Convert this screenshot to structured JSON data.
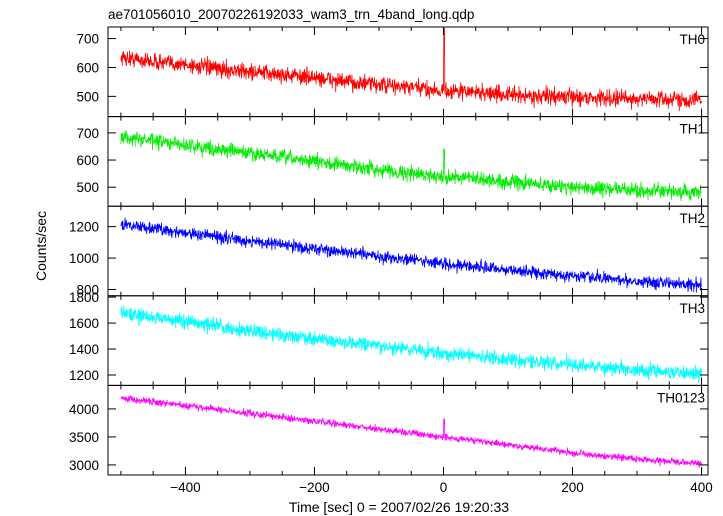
{
  "chart_data": {
    "type": "line",
    "title": "ae701056010_20070226192033_wam3_trn_4band_long.qdp",
    "xlabel": "Time [sec] 0 = 2007/02/26 19:20:33",
    "ylabel": "Counts/sec",
    "xlim": [
      -520,
      410
    ],
    "x_ticks": [
      -400,
      -200,
      0,
      200,
      400
    ],
    "x_tick_labels": [
      "−400",
      "−200",
      "0",
      "200",
      "400"
    ],
    "grid": false,
    "panels": [
      {
        "name": "TH0",
        "color": "#ff0000",
        "ylim": [
          430,
          740
        ],
        "ticks": [
          500,
          600,
          700
        ],
        "x": [
          -500,
          -450,
          -400,
          -350,
          -300,
          -250,
          -200,
          -150,
          -100,
          -50,
          0,
          50,
          100,
          150,
          200,
          250,
          300,
          350,
          400
        ],
        "y": [
          635,
          620,
          610,
          595,
          585,
          575,
          565,
          550,
          540,
          530,
          520,
          515,
          505,
          500,
          498,
          495,
          492,
          490,
          488
        ],
        "noise": 28,
        "spike": {
          "x": 1,
          "y": 735
        }
      },
      {
        "name": "TH1",
        "color": "#00ee00",
        "ylim": [
          430,
          760
        ],
        "ticks": [
          500,
          600,
          700
        ],
        "x": [
          -500,
          -450,
          -400,
          -350,
          -300,
          -250,
          -200,
          -150,
          -100,
          -50,
          0,
          50,
          100,
          150,
          200,
          250,
          300,
          350,
          400
        ],
        "y": [
          685,
          670,
          655,
          640,
          625,
          610,
          595,
          580,
          565,
          550,
          540,
          530,
          520,
          510,
          500,
          495,
          488,
          482,
          478
        ],
        "noise": 26,
        "spike": {
          "x": 1,
          "y": 640
        }
      },
      {
        "name": "TH2",
        "color": "#0000ff",
        "ylim": [
          760,
          1330
        ],
        "ticks": [
          800,
          1000,
          1200
        ],
        "x": [
          -500,
          -450,
          -400,
          -350,
          -300,
          -250,
          -200,
          -150,
          -100,
          -50,
          0,
          50,
          100,
          150,
          200,
          250,
          300,
          350,
          400
        ],
        "y": [
          1215,
          1190,
          1160,
          1135,
          1110,
          1085,
          1060,
          1035,
          1010,
          990,
          965,
          945,
          925,
          905,
          885,
          870,
          855,
          842,
          830
        ],
        "noise": 38,
        "spike": null
      },
      {
        "name": "TH3",
        "color": "#00ffff",
        "ylim": [
          1120,
          1810
        ],
        "ticks": [
          1200,
          1400,
          1600,
          1800
        ],
        "x": [
          -500,
          -450,
          -400,
          -350,
          -300,
          -250,
          -200,
          -150,
          -100,
          -50,
          0,
          50,
          100,
          150,
          200,
          250,
          300,
          350,
          400
        ],
        "y": [
          1680,
          1645,
          1610,
          1575,
          1540,
          1510,
          1480,
          1450,
          1420,
          1395,
          1370,
          1345,
          1320,
          1300,
          1280,
          1260,
          1240,
          1225,
          1210
        ],
        "noise": 55,
        "spike": null
      },
      {
        "name": "TH0123",
        "color": "#ff00ff",
        "ylim": [
          2820,
          4420
        ],
        "ticks": [
          3000,
          3500,
          4000
        ],
        "x": [
          -500,
          -450,
          -400,
          -350,
          -300,
          -250,
          -200,
          -150,
          -100,
          -50,
          0,
          50,
          100,
          150,
          200,
          250,
          300,
          350,
          400
        ],
        "y": [
          4200,
          4130,
          4060,
          3990,
          3920,
          3850,
          3780,
          3710,
          3640,
          3570,
          3500,
          3430,
          3360,
          3290,
          3220,
          3160,
          3100,
          3060,
          3020
        ],
        "noise": 60,
        "spike": {
          "x": 1,
          "y": 3820
        }
      }
    ]
  }
}
